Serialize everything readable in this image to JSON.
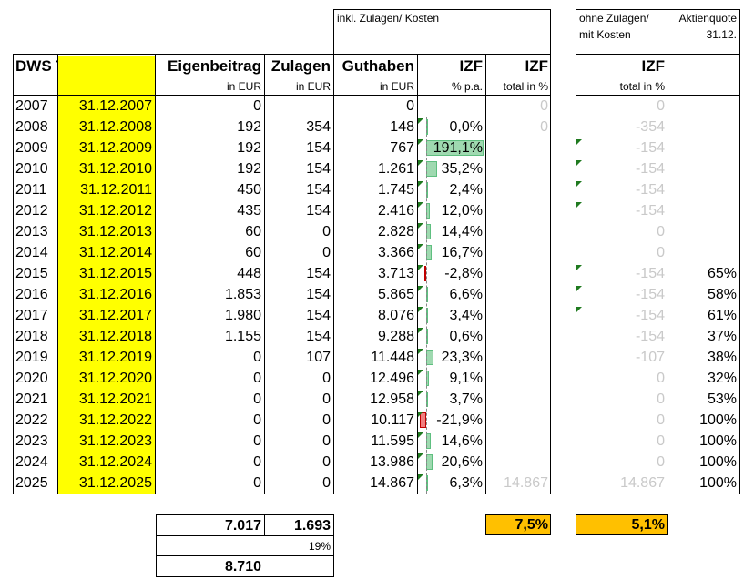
{
  "header": {
    "group_incl": "inkl. Zulagen/ Kosten",
    "group_ohne_line1": "ohne Zulagen/",
    "group_ohne_line2": "mit Kosten",
    "aktien_line1": "Aktienquote",
    "aktien_line2": "31.12.",
    "fund_name": "DWS TRD",
    "col_eigenbeitrag": "Eigenbeitrag",
    "col_zulagen": "Zulagen",
    "col_guthaben": "Guthaben",
    "col_izf": "IZF",
    "col_izf_total": "IZF",
    "col_izf_ohne": "IZF",
    "unit_eigen": "in EUR",
    "unit_zulagen": "in EUR",
    "unit_guthaben": "in EUR",
    "unit_izf": "% p.a.",
    "unit_total": "total in %",
    "unit_ohne": "total in %"
  },
  "rows": [
    {
      "year": "2007",
      "date": "31.12.2007",
      "eigen": "0",
      "zul": "",
      "guth": "0",
      "izf": "",
      "izf_val": null,
      "total": "0",
      "ohne": "0",
      "aktien": ""
    },
    {
      "year": "2008",
      "date": "31.12.2008",
      "eigen": "192",
      "zul": "354",
      "guth": "148",
      "izf": "0,0%",
      "izf_val": 0.0,
      "total": "0",
      "ohne": "-354",
      "aktien": ""
    },
    {
      "year": "2009",
      "date": "31.12.2009",
      "eigen": "192",
      "zul": "154",
      "guth": "767",
      "izf": "191,1%",
      "izf_val": 191.1,
      "total": "",
      "ohne": "-154",
      "aktien": ""
    },
    {
      "year": "2010",
      "date": "31.12.2010",
      "eigen": "192",
      "zul": "154",
      "guth": "1.261",
      "izf": "35,2%",
      "izf_val": 35.2,
      "total": "",
      "ohne": "-154",
      "aktien": ""
    },
    {
      "year": "2011",
      "date": "31.12.2011",
      "eigen": "450",
      "zul": "154",
      "guth": "1.745",
      "izf": "2,4%",
      "izf_val": 2.4,
      "total": "",
      "ohne": "-154",
      "aktien": ""
    },
    {
      "year": "2012",
      "date": "31.12.2012",
      "eigen": "435",
      "zul": "154",
      "guth": "2.416",
      "izf": "12,0%",
      "izf_val": 12.0,
      "total": "",
      "ohne": "-154",
      "aktien": ""
    },
    {
      "year": "2013",
      "date": "31.12.2013",
      "eigen": "60",
      "zul": "0",
      "guth": "2.828",
      "izf": "14,4%",
      "izf_val": 14.4,
      "total": "",
      "ohne": "0",
      "aktien": ""
    },
    {
      "year": "2014",
      "date": "31.12.2014",
      "eigen": "60",
      "zul": "0",
      "guth": "3.366",
      "izf": "16,7%",
      "izf_val": 16.7,
      "total": "",
      "ohne": "0",
      "aktien": ""
    },
    {
      "year": "2015",
      "date": "31.12.2015",
      "eigen": "448",
      "zul": "154",
      "guth": "3.713",
      "izf": "-2,8%",
      "izf_val": -2.8,
      "total": "",
      "ohne": "-154",
      "aktien": "65%"
    },
    {
      "year": "2016",
      "date": "31.12.2016",
      "eigen": "1.853",
      "zul": "154",
      "guth": "5.865",
      "izf": "6,6%",
      "izf_val": 6.6,
      "total": "",
      "ohne": "-154",
      "aktien": "58%"
    },
    {
      "year": "2017",
      "date": "31.12.2017",
      "eigen": "1.980",
      "zul": "154",
      "guth": "8.076",
      "izf": "3,4%",
      "izf_val": 3.4,
      "total": "",
      "ohne": "-154",
      "aktien": "61%"
    },
    {
      "year": "2018",
      "date": "31.12.2018",
      "eigen": "1.155",
      "zul": "154",
      "guth": "9.288",
      "izf": "0,6%",
      "izf_val": 0.6,
      "total": "",
      "ohne": "-154",
      "aktien": "37%"
    },
    {
      "year": "2019",
      "date": "31.12.2019",
      "eigen": "0",
      "zul": "107",
      "guth": "11.448",
      "izf": "23,3%",
      "izf_val": 23.3,
      "total": "",
      "ohne": "-107",
      "aktien": "38%"
    },
    {
      "year": "2020",
      "date": "31.12.2020",
      "eigen": "0",
      "zul": "0",
      "guth": "12.496",
      "izf": "9,1%",
      "izf_val": 9.1,
      "total": "",
      "ohne": "0",
      "aktien": "32%"
    },
    {
      "year": "2021",
      "date": "31.12.2021",
      "eigen": "0",
      "zul": "0",
      "guth": "12.958",
      "izf": "3,7%",
      "izf_val": 3.7,
      "total": "",
      "ohne": "0",
      "aktien": "53%"
    },
    {
      "year": "2022",
      "date": "31.12.2022",
      "eigen": "0",
      "zul": "0",
      "guth": "10.117",
      "izf": "-21,9%",
      "izf_val": -21.9,
      "total": "",
      "ohne": "0",
      "aktien": "100%"
    },
    {
      "year": "2023",
      "date": "31.12.2023",
      "eigen": "0",
      "zul": "0",
      "guth": "11.595",
      "izf": "14,6%",
      "izf_val": 14.6,
      "total": "",
      "ohne": "0",
      "aktien": "100%"
    },
    {
      "year": "2024",
      "date": "31.12.2024",
      "eigen": "0",
      "zul": "0",
      "guth": "13.986",
      "izf": "20,6%",
      "izf_val": 20.6,
      "total": "",
      "ohne": "0",
      "aktien": "100%"
    },
    {
      "year": "2025",
      "date": "31.12.2025",
      "eigen": "0",
      "zul": "0",
      "guth": "14.867",
      "izf": "6,3%",
      "izf_val": 6.3,
      "total": "14.867",
      "ohne": "14.867",
      "aktien": "100%"
    }
  ],
  "summary": {
    "sum_eigen": "7.017",
    "sum_zulagen": "1.693",
    "zulagen_pct": "19%",
    "grand_total": "8.710",
    "izf_total": "7,5%",
    "izf_ohne": "5,1%"
  },
  "colors": {
    "highlight_yellow": "#ffff00",
    "highlight_orange": "#ffc000",
    "bar_positive": "#9fd9b0",
    "bar_negative": "#f08080",
    "muted_text": "#c9c9c9"
  }
}
